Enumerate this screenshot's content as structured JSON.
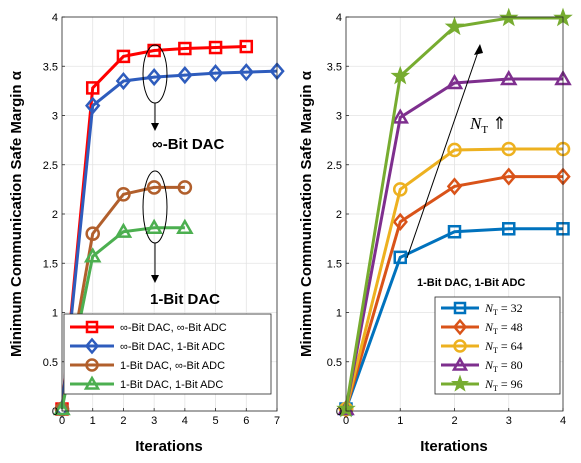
{
  "chart_data": [
    {
      "type": "line",
      "xlabel": "Iterations",
      "ylabel": "Minimum Communication Safe Margin α",
      "xlim": [
        0,
        7
      ],
      "ylim": [
        0,
        4
      ],
      "xticks": [
        "0",
        "1",
        "2",
        "3",
        "4",
        "5",
        "6",
        "7"
      ],
      "yticks": [
        "0",
        "0.5",
        "1",
        "1.5",
        "2",
        "2.5",
        "3",
        "3.5",
        "4"
      ],
      "grid": true,
      "legend_position": "bottom-right",
      "series": [
        {
          "name": "∞-Bit DAC, ∞-Bit ADC",
          "color": "#ff0000",
          "marker": "square",
          "x": [
            0,
            1,
            2,
            3,
            4,
            5,
            6
          ],
          "values": [
            0.02,
            3.28,
            3.6,
            3.66,
            3.68,
            3.69,
            3.7
          ]
        },
        {
          "name": "∞-Bit DAC, 1-Bit ADC",
          "color": "#2e5cbd",
          "marker": "diamond",
          "x": [
            0,
            1,
            2,
            3,
            4,
            5,
            6,
            7
          ],
          "values": [
            0.02,
            3.1,
            3.35,
            3.39,
            3.41,
            3.43,
            3.44,
            3.45
          ]
        },
        {
          "name": "1-Bit DAC, ∞-Bit ADC",
          "color": "#b15f2c",
          "marker": "circle",
          "x": [
            0,
            1,
            2,
            3,
            4
          ],
          "values": [
            0.02,
            1.8,
            2.2,
            2.27,
            2.27
          ]
        },
        {
          "name": "1-Bit DAC, 1-Bit ADC",
          "color": "#4caf50",
          "marker": "triangle",
          "x": [
            0,
            1,
            2,
            3,
            4
          ],
          "values": [
            0.02,
            1.57,
            1.82,
            1.86,
            1.86
          ]
        }
      ],
      "annotations": [
        {
          "text": "∞-Bit DAC"
        },
        {
          "text": "1-Bit DAC"
        }
      ]
    },
    {
      "type": "line",
      "xlabel": "Iterations",
      "ylabel": "Minimum Communication Safe Margin α",
      "xlim": [
        0,
        4
      ],
      "ylim": [
        0,
        4
      ],
      "xticks": [
        "0",
        "1",
        "2",
        "3",
        "4"
      ],
      "yticks": [
        "0",
        "0.5",
        "1",
        "1.5",
        "2",
        "2.5",
        "3",
        "3.5",
        "4"
      ],
      "grid": true,
      "legend_position": "bottom-right",
      "series": [
        {
          "name": "N_T = 32",
          "color": "#0072bd",
          "marker": "square",
          "x": [
            0,
            1,
            2,
            3,
            4
          ],
          "values": [
            0.02,
            1.56,
            1.82,
            1.85,
            1.85
          ]
        },
        {
          "name": "N_T = 48",
          "color": "#d95319",
          "marker": "diamond",
          "x": [
            0,
            1,
            2,
            3,
            4
          ],
          "values": [
            0.02,
            1.92,
            2.28,
            2.38,
            2.38
          ]
        },
        {
          "name": "N_T = 64",
          "color": "#edb120",
          "marker": "circle",
          "x": [
            0,
            1,
            2,
            3,
            4
          ],
          "values": [
            0.02,
            2.25,
            2.65,
            2.66,
            2.66
          ]
        },
        {
          "name": "N_T = 80",
          "color": "#7e2f8e",
          "marker": "triangle",
          "x": [
            0,
            1,
            2,
            3,
            4
          ],
          "values": [
            0.02,
            2.98,
            3.33,
            3.37,
            3.37
          ]
        },
        {
          "name": "N_T = 96",
          "color": "#77ac30",
          "marker": "star",
          "x": [
            0,
            1,
            2,
            3,
            4
          ],
          "values": [
            0.02,
            3.4,
            3.9,
            3.99,
            3.99
          ]
        }
      ],
      "annotations": [
        {
          "text": "1-Bit DAC, 1-Bit ADC"
        },
        {
          "text": "N_T ⇑"
        }
      ]
    }
  ]
}
